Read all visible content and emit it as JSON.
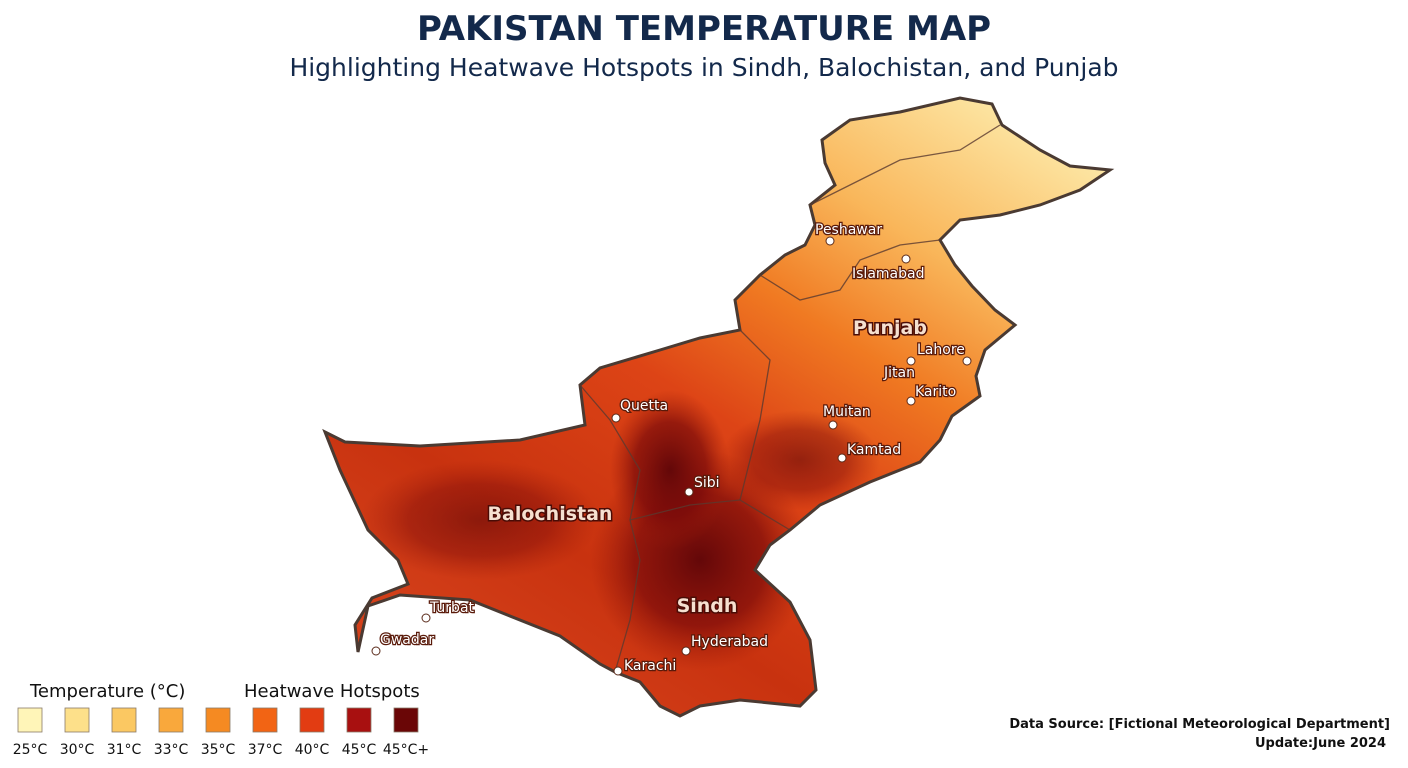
{
  "header": {
    "title": "PAKISTAN TEMPERATURE MAP",
    "subtitle": "Highlighting Heatwave Hotspots in Sindh, Balochistan, and Punjab"
  },
  "regions": [
    {
      "label": "Balochistan"
    },
    {
      "label": "Sindh"
    },
    {
      "label": "Punjab"
    }
  ],
  "cities": [
    {
      "label": "Peshawar"
    },
    {
      "label": "Islamabad"
    },
    {
      "label": "Lahore"
    },
    {
      "label": "Jitan"
    },
    {
      "label": "Karito"
    },
    {
      "label": "Muitan"
    },
    {
      "label": "Kamtad"
    },
    {
      "label": "Quetta"
    },
    {
      "label": "Sibi"
    },
    {
      "label": "Turbat"
    },
    {
      "label": "Gwadar"
    },
    {
      "label": "Hyderabad"
    },
    {
      "label": "Karachi"
    }
  ],
  "legend": {
    "temperature_title": "Temperature (°C)",
    "hotspots_title": "Heatwave Hotspots",
    "items": [
      {
        "label": "25°C",
        "color": "#fff5b8"
      },
      {
        "label": "30°C",
        "color": "#fde08a"
      },
      {
        "label": "31°C",
        "color": "#fbc862"
      },
      {
        "label": "33°C",
        "color": "#f9a83c"
      },
      {
        "label": "35°C",
        "color": "#f58a22"
      },
      {
        "label": "37°C",
        "color": "#f26414"
      },
      {
        "label": "40°C",
        "color": "#e23c12"
      },
      {
        "label": "45°C",
        "color": "#a81010"
      },
      {
        "label": "45°C+",
        "color": "#6a0606"
      }
    ]
  },
  "footer": {
    "source": "Data Source: [Fictional Meteorological Department]",
    "update": "Update:June 2024"
  }
}
